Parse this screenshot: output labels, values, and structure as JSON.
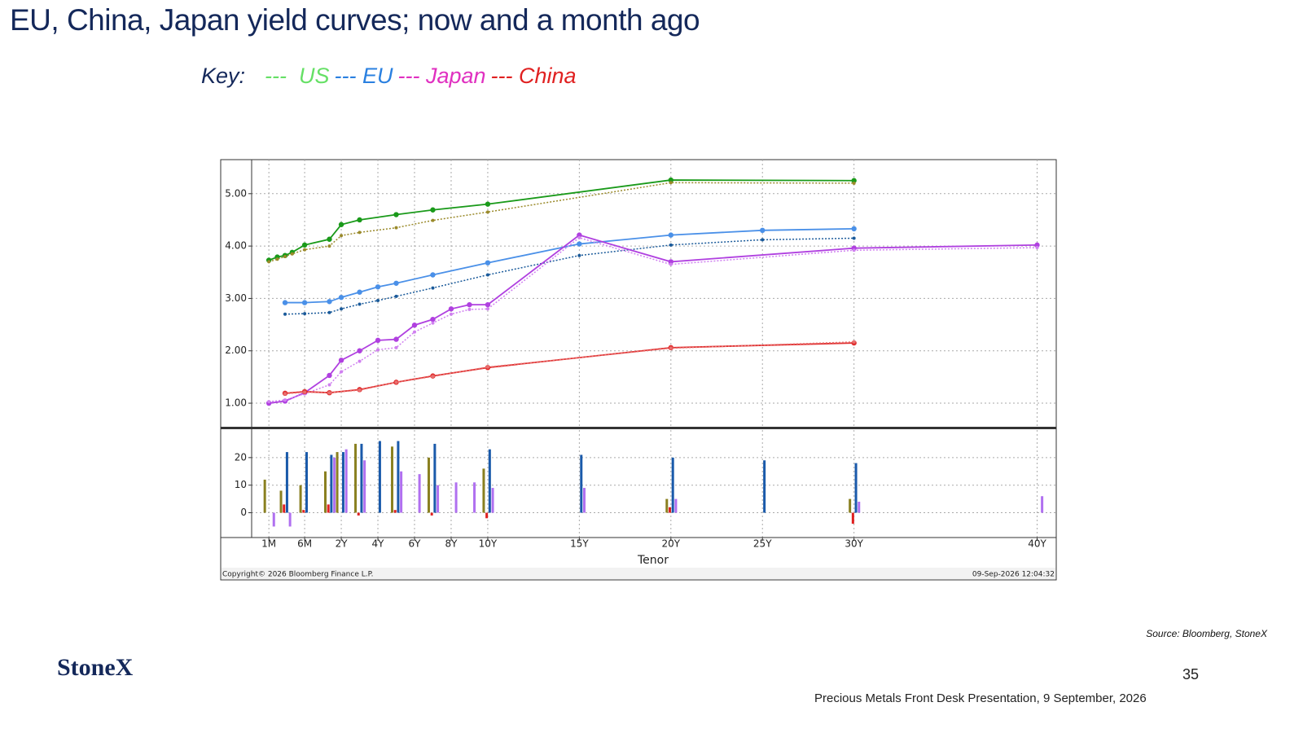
{
  "slide": {
    "title": "EU, China, Japan yield curves; now and a month ago",
    "key": {
      "label": "Key:",
      "items": [
        {
          "text": "---  US",
          "color": "#66e066"
        },
        {
          "text": "--- EU",
          "color": "#2a80e0"
        },
        {
          "text": "--- Japan",
          "color": "#e030c0"
        },
        {
          "text": "--- China",
          "color": "#e02020"
        }
      ]
    },
    "copyright": "Copyright© 2026 Bloomberg Finance L.P.",
    "timestamp": "09-Sep-2026 12:04:32",
    "source": "Source: Bloomberg, StoneX",
    "logo": "StoneX",
    "page_number": "35",
    "footer": "Precious Metals Front Desk Presentation, 9 September, 2026"
  },
  "chart_data": [
    {
      "type": "line",
      "xlim": [
        0,
        41
      ],
      "ylim": [
        0.55,
        5.65
      ],
      "yticks": [
        {
          "value": 1,
          "label": "1.00"
        },
        {
          "value": 2,
          "label": "2.00"
        },
        {
          "value": 3,
          "label": "3.00"
        },
        {
          "value": 4,
          "label": "4.00"
        },
        {
          "value": 5,
          "label": "5.00"
        }
      ],
      "grid": true,
      "series": [
        {
          "color": "#1a9a1a",
          "style": "solid",
          "x": [
            0.0833,
            0.1667,
            0.25,
            0.3333,
            0.5,
            1,
            2,
            3,
            5,
            7,
            10,
            20,
            30
          ],
          "values": [
            3.73,
            3.79,
            3.82,
            3.88,
            4.02,
            4.13,
            4.41,
            4.5,
            4.6,
            4.69,
            4.8,
            5.26,
            5.25
          ]
        },
        {
          "color": "#9a8a2a",
          "style": "dotted",
          "x": [
            0.0833,
            0.1667,
            0.25,
            0.3333,
            0.5,
            1,
            2,
            3,
            5,
            7,
            10,
            20,
            30
          ],
          "values": [
            3.7,
            3.75,
            3.8,
            3.85,
            3.93,
            4.0,
            4.2,
            4.26,
            4.35,
            4.49,
            4.65,
            5.21,
            5.2
          ]
        },
        {
          "color": "#4a90e8",
          "style": "solid",
          "x": [
            0.25,
            0.5,
            1,
            2,
            3,
            4,
            5,
            7,
            10,
            15,
            20,
            25,
            30
          ],
          "values": [
            2.92,
            2.92,
            2.94,
            3.02,
            3.12,
            3.22,
            3.29,
            3.45,
            3.68,
            4.04,
            4.21,
            4.3,
            4.33
          ]
        },
        {
          "color": "#1a5a9a",
          "style": "dotted",
          "x": [
            0.25,
            0.5,
            1,
            2,
            3,
            4,
            5,
            7,
            10,
            15,
            20,
            25,
            30
          ],
          "values": [
            2.7,
            2.71,
            2.73,
            2.8,
            2.89,
            2.96,
            3.04,
            3.2,
            3.45,
            3.82,
            4.02,
            4.12,
            4.15
          ]
        },
        {
          "color": "#b040e0",
          "style": "solid",
          "x": [
            0.0833,
            0.25,
            0.5,
            1,
            2,
            3,
            4,
            5,
            6,
            7,
            8,
            9,
            10,
            15,
            20,
            30,
            40
          ],
          "values": [
            1.0,
            1.04,
            1.2,
            1.53,
            1.82,
            2.0,
            2.2,
            2.22,
            2.49,
            2.6,
            2.8,
            2.88,
            2.88,
            4.21,
            3.7,
            3.96,
            4.02
          ]
        },
        {
          "color": "#d080f0",
          "style": "dotted",
          "x": [
            0.0833,
            0.25,
            0.5,
            1,
            2,
            3,
            4,
            5,
            6,
            7,
            8,
            9,
            10,
            15,
            20,
            30,
            40
          ],
          "values": [
            1.03,
            1.06,
            1.18,
            1.35,
            1.6,
            1.8,
            2.02,
            2.06,
            2.36,
            2.53,
            2.7,
            2.79,
            2.8,
            4.16,
            3.65,
            3.92,
            3.97
          ]
        },
        {
          "color": "#e03030",
          "style": "solid",
          "x": [
            0.25,
            0.5,
            1,
            3,
            5,
            7,
            10,
            20,
            30
          ],
          "values": [
            1.19,
            1.22,
            1.2,
            1.26,
            1.4,
            1.52,
            1.68,
            2.06,
            2.15
          ]
        },
        {
          "color": "#e87070",
          "style": "dotted",
          "x": [
            0.25,
            0.5,
            1,
            3,
            5,
            7,
            10,
            20,
            30
          ],
          "values": [
            1.18,
            1.21,
            1.2,
            1.25,
            1.4,
            1.51,
            1.69,
            2.05,
            2.17
          ]
        }
      ]
    },
    {
      "type": "bar",
      "xlabel": "Tenor",
      "xlim": [
        0,
        41
      ],
      "ylim": [
        -9,
        30
      ],
      "yticks": [
        0,
        10,
        20
      ],
      "xticks": [
        {
          "value": 0.0833,
          "label": "1M"
        },
        {
          "value": 0.5,
          "label": "6M"
        },
        {
          "value": 2,
          "label": "2Y"
        },
        {
          "value": 4,
          "label": "4Y"
        },
        {
          "value": 6,
          "label": "6Y"
        },
        {
          "value": 8,
          "label": "8Y"
        },
        {
          "value": 10,
          "label": "10Y"
        },
        {
          "value": 15,
          "label": "15Y"
        },
        {
          "value": 20,
          "label": "20Y"
        },
        {
          "value": 25,
          "label": "25Y"
        },
        {
          "value": 30,
          "label": "30Y"
        },
        {
          "value": 40,
          "label": "40Y"
        }
      ],
      "grid": true,
      "x": [
        0.0833,
        0.25,
        0.5,
        1,
        2,
        3,
        4,
        5,
        6,
        7,
        8,
        9,
        10,
        15,
        20,
        25,
        30,
        40
      ],
      "series": [
        {
          "color": "#8a8020",
          "values": [
            12,
            8,
            10,
            15,
            22,
            25,
            null,
            24,
            null,
            20,
            null,
            null,
            16,
            null,
            5,
            null,
            5,
            null
          ]
        },
        {
          "color": "#e02020",
          "values": [
            null,
            3,
            1,
            3,
            null,
            -1,
            null,
            1,
            null,
            -1,
            null,
            null,
            -2,
            null,
            2,
            null,
            -4,
            null
          ]
        },
        {
          "color": "#1a5aaa",
          "values": [
            null,
            22,
            22,
            21,
            22,
            25,
            26,
            26,
            null,
            25,
            null,
            null,
            23,
            21,
            20,
            19,
            18,
            null
          ]
        },
        {
          "color": "#b070f0",
          "values": [
            -5,
            -5,
            null,
            20,
            23,
            19,
            null,
            15,
            14,
            10,
            11,
            11,
            9,
            9,
            5,
            null,
            4,
            6
          ]
        }
      ]
    }
  ]
}
